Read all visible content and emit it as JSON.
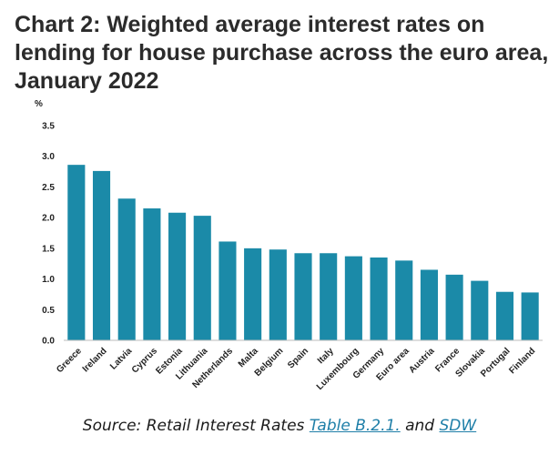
{
  "chart_data": {
    "type": "bar",
    "title": "Chart 2: Weighted average interest rates on lending for house purchase across the euro area, January 2022",
    "ylabel": "%",
    "xlabel": "",
    "ylim": [
      0,
      3.5
    ],
    "yticks": [
      "0.0",
      "0.5",
      "1.0",
      "1.5",
      "2.0",
      "2.5",
      "3.0",
      "3.5"
    ],
    "grid": false,
    "categories": [
      "Greece",
      "Ireland",
      "Latvia",
      "Cyprus",
      "Estonia",
      "Lithuania",
      "Netherlands",
      "Malta",
      "Belgium",
      "Spain",
      "Italy",
      "Luxembourg",
      "Germany",
      "Euro area",
      "Austria",
      "France",
      "Slovakia",
      "Portugal",
      "Finland"
    ],
    "values": [
      2.86,
      2.76,
      2.31,
      2.15,
      2.08,
      2.03,
      1.61,
      1.5,
      1.48,
      1.42,
      1.42,
      1.37,
      1.35,
      1.3,
      1.15,
      1.07,
      0.97,
      0.79,
      0.78
    ],
    "bar_color": "#1b8aa8"
  },
  "source": {
    "prefix": "Source: Retail Interest Rates ",
    "link1": "Table B.2.1.",
    "middle": " and",
    "link2": "SDW"
  }
}
